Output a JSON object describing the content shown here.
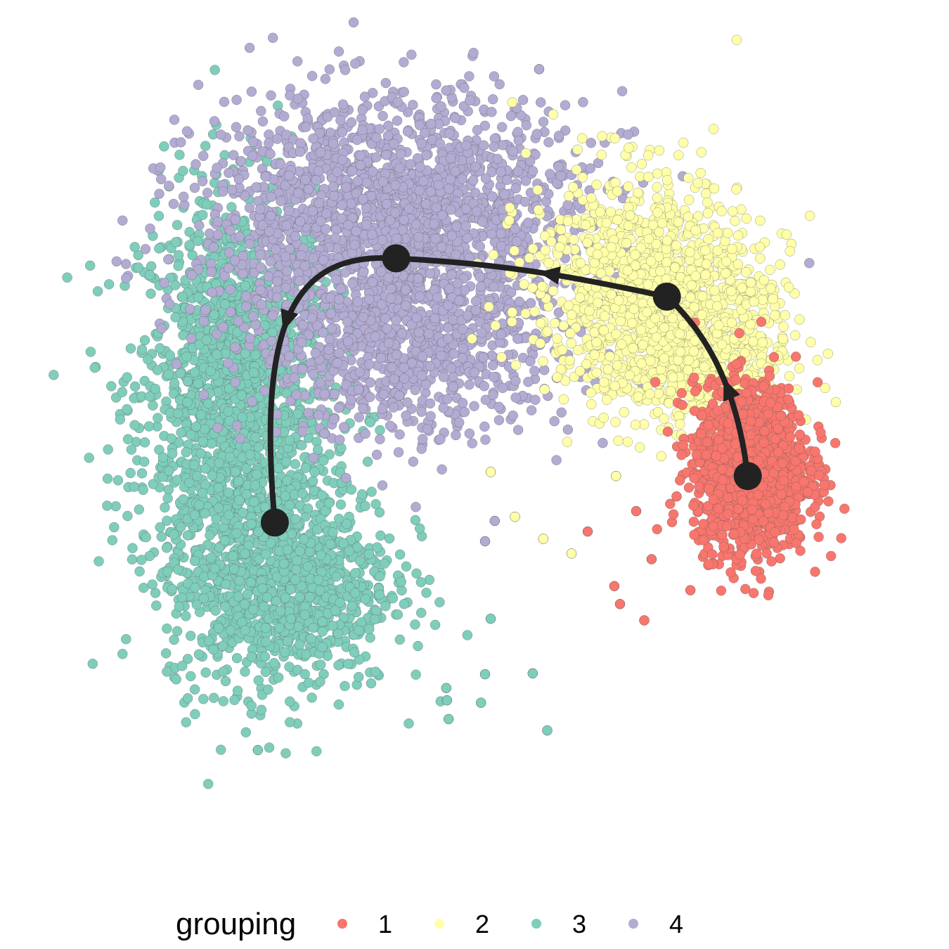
{
  "chart_data": {
    "type": "scatter",
    "title": "",
    "xlabel": "",
    "ylabel": "",
    "axes_visible": false,
    "grid": false,
    "xlim": [
      0,
      100
    ],
    "ylim": [
      0,
      100
    ],
    "legend": {
      "title": "grouping",
      "placement": "bottom",
      "entries": [
        {
          "label": "1",
          "color": "#f8766d"
        },
        {
          "label": "2",
          "color": "#ffffaa"
        },
        {
          "label": "3",
          "color": "#7fcdbb"
        },
        {
          "label": "4",
          "color": "#b2abd2"
        }
      ]
    },
    "series": [
      {
        "name": "1",
        "color": "#f8766d",
        "approx_point_count": 1500,
        "density_centers": [
          {
            "x": 84.2,
            "y": 46.5,
            "sx": 3.5,
            "sy": 5.0,
            "weight": 1.0
          }
        ],
        "outliers": [
          [
            67.3,
            32.0
          ],
          [
            71.0,
            27.8
          ],
          [
            68.0,
            29.8
          ],
          [
            76.7,
            31.5
          ],
          [
            64.0,
            38.7
          ],
          [
            75.0,
            43.0
          ],
          [
            71.9,
            35.3
          ],
          [
            70.0,
            41.2
          ]
        ]
      },
      {
        "name": "2",
        "color": "#ffffaa",
        "approx_point_count": 1600,
        "density_centers": [
          {
            "x": 70.0,
            "y": 69.0,
            "sx": 6.5,
            "sy": 7.0,
            "weight": 0.6
          },
          {
            "x": 78.0,
            "y": 62.0,
            "sx": 5.5,
            "sy": 5.5,
            "weight": 0.4
          }
        ],
        "outliers": [
          [
            58.5,
            37.8
          ],
          [
            62.0,
            36.0
          ],
          [
            55.0,
            40.5
          ],
          [
            67.5,
            45.5
          ],
          [
            52.0,
            46.0
          ]
        ]
      },
      {
        "name": "3",
        "color": "#7fcdbb",
        "approx_point_count": 2600,
        "density_centers": [
          {
            "x": 20.5,
            "y": 56.0,
            "sx": 6.0,
            "sy": 12.0,
            "weight": 0.6
          },
          {
            "x": 26.0,
            "y": 33.0,
            "sx": 7.0,
            "sy": 7.0,
            "weight": 0.4
          }
        ],
        "outliers": [
          [
            23.2,
            11.9
          ],
          [
            50.8,
            17.7
          ],
          [
            46.6,
            18.0
          ],
          [
            46.8,
            15.7
          ],
          [
            59.0,
            14.3
          ],
          [
            57.2,
            21.3
          ],
          [
            51.3,
            21.2
          ],
          [
            46.5,
            19.5
          ],
          [
            52.0,
            28.0
          ]
        ]
      },
      {
        "name": "4",
        "color": "#b2abd2",
        "approx_point_count": 2600,
        "density_centers": [
          {
            "x": 40.0,
            "y": 78.0,
            "sx": 12.0,
            "sy": 7.0,
            "weight": 0.65
          },
          {
            "x": 42.0,
            "y": 62.0,
            "sx": 10.0,
            "sy": 6.0,
            "weight": 0.35
          }
        ],
        "outliers": [
          [
            58.0,
            95.4
          ],
          [
            51.3,
            37.5
          ],
          [
            52.5,
            40.0
          ]
        ]
      }
    ],
    "trajectory": {
      "color": "#222222",
      "nodes": [
        {
          "id": "n1",
          "x": 83.8,
          "y": 45.5
        },
        {
          "id": "n2",
          "x": 73.8,
          "y": 67.5
        },
        {
          "id": "n3",
          "x": 40.3,
          "y": 72.2
        },
        {
          "id": "n4",
          "x": 25.3,
          "y": 39.8
        }
      ],
      "paths": [
        {
          "from": "n1",
          "to": "n2",
          "points": [
            [
              83.8,
              45.5
            ],
            [
              83.0,
              52.0
            ],
            [
              81.0,
              61.0
            ],
            [
              73.8,
              67.5
            ]
          ],
          "arrow_at": [
            82.3,
            58.0
          ]
        },
        {
          "from": "n2",
          "to": "n3",
          "points": [
            [
              73.8,
              67.5
            ],
            [
              64.0,
              69.5
            ],
            [
              55.0,
              71.5
            ],
            [
              40.3,
              72.2
            ]
          ],
          "arrow_at": [
            58.0,
            71.2
          ]
        },
        {
          "from": "n3",
          "to": "n4",
          "points": [
            [
              40.3,
              72.2
            ],
            [
              28.0,
              73.0
            ],
            [
              23.0,
              65.0
            ],
            [
              25.3,
              39.8
            ]
          ],
          "arrow_at": [
            25.5,
            63.5
          ]
        }
      ]
    }
  }
}
